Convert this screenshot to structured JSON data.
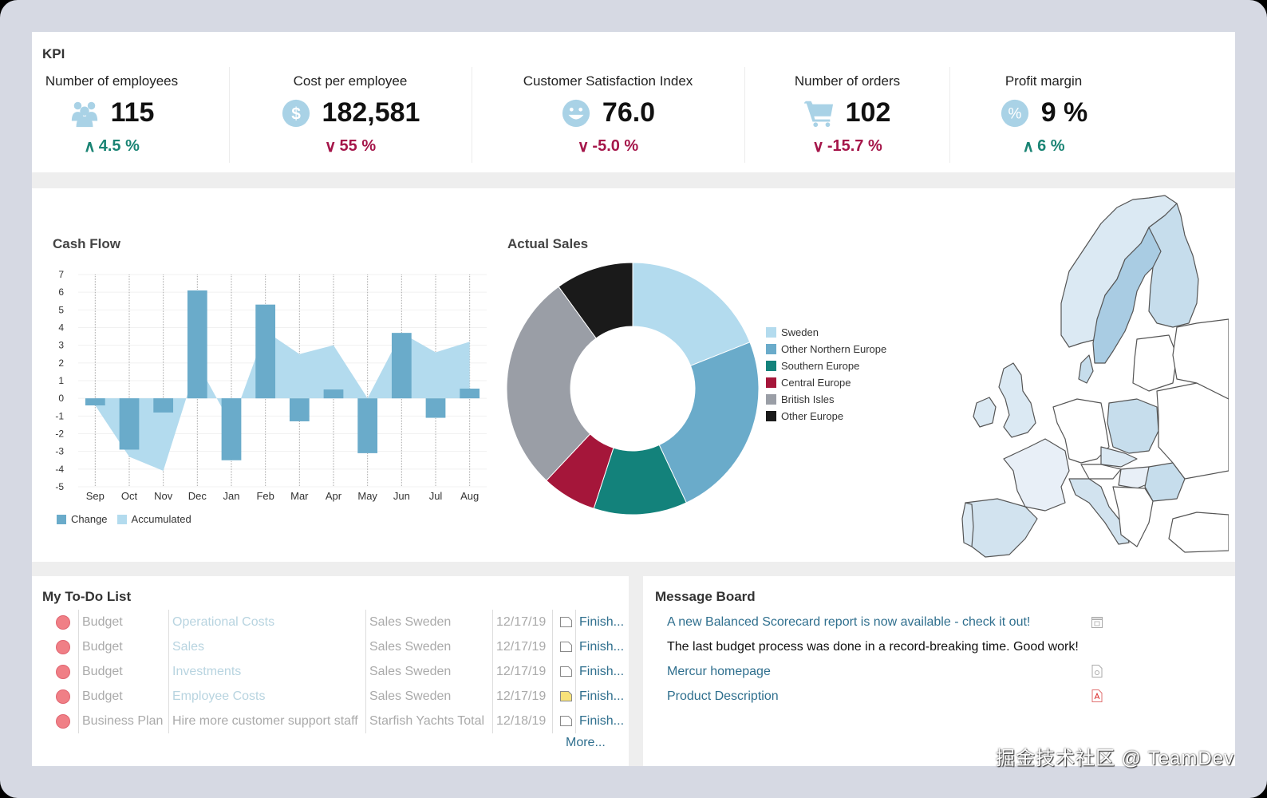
{
  "kpi": {
    "title": "KPI",
    "items": [
      {
        "label": "Number of employees",
        "value": "115",
        "delta": "4.5 %",
        "direction": "up",
        "icon": "people-icon"
      },
      {
        "label": "Cost per employee",
        "value": "182,581",
        "delta": "55 %",
        "direction": "down",
        "icon": "dollar-icon"
      },
      {
        "label": "Customer Satisfaction Index",
        "value": "76.0",
        "delta": "-5.0 %",
        "direction": "down",
        "icon": "smiley-icon"
      },
      {
        "label": "Number of orders",
        "value": "102",
        "delta": "-15.7 %",
        "direction": "down",
        "icon": "cart-icon"
      },
      {
        "label": "Profit margin",
        "value": "9 %",
        "delta": "6 %",
        "direction": "up",
        "icon": "percent-icon"
      }
    ]
  },
  "colors": {
    "up": "#1a8474",
    "down": "#a5164a",
    "icon": "#a9d2e6",
    "change": "#6aabca",
    "accumulated": "#b3dbee"
  },
  "chart_data": [
    {
      "type": "bar",
      "title": "Cash Flow",
      "categories": [
        "Sep",
        "Oct",
        "Nov",
        "Dec",
        "Jan",
        "Feb",
        "Mar",
        "Apr",
        "May",
        "Jun",
        "Jul",
        "Aug"
      ],
      "series": [
        {
          "name": "Change",
          "kind": "bar",
          "values": [
            -0.4,
            -2.9,
            -0.8,
            6.1,
            -3.5,
            5.3,
            -1.3,
            0.5,
            -3.1,
            3.7,
            -1.1,
            0.55
          ]
        },
        {
          "name": "Accumulated",
          "kind": "area",
          "values": [
            -0.4,
            -3.3,
            -4.1,
            2.0,
            -1.5,
            3.8,
            2.5,
            3.0,
            0.0,
            3.7,
            2.6,
            3.2
          ]
        }
      ],
      "ylim": [
        -5,
        7
      ],
      "yticks": [
        7,
        6,
        5,
        4,
        3,
        2,
        1,
        0,
        -1,
        -2,
        -3,
        -4,
        -5
      ],
      "xlabel": "",
      "ylabel": "",
      "grid": true,
      "legend": "bottom-left"
    },
    {
      "type": "pie",
      "title": "Actual Sales",
      "donut": true,
      "labels": [
        "Sweden",
        "Other Northern Europe",
        "Southern Europe",
        "Central Europe",
        "British Isles",
        "Other Europe"
      ],
      "values": [
        19,
        24,
        12,
        7,
        28,
        10
      ],
      "colors": [
        "#b3dbee",
        "#6aabca",
        "#13827b",
        "#a5163a",
        "#9a9ea6",
        "#1a1a1a"
      ],
      "legend": "right"
    }
  ],
  "map": {
    "title": "Europe sales map"
  },
  "todo": {
    "title": "My To-Do List",
    "rows": [
      {
        "type": "Budget",
        "item": "Operational Costs",
        "entity": "Sales Sweden",
        "date": "12/17/19",
        "note_highlight": false,
        "action": "Finish..."
      },
      {
        "type": "Budget",
        "item": "Sales",
        "entity": "Sales Sweden",
        "date": "12/17/19",
        "note_highlight": false,
        "action": "Finish..."
      },
      {
        "type": "Budget",
        "item": "Investments",
        "entity": "Sales Sweden",
        "date": "12/17/19",
        "note_highlight": false,
        "action": "Finish..."
      },
      {
        "type": "Budget",
        "item": "Employee Costs",
        "entity": "Sales Sweden",
        "date": "12/17/19",
        "note_highlight": true,
        "action": "Finish..."
      },
      {
        "type": "Business Plan",
        "item": "Hire more customer support staff",
        "entity": "Starfish Yachts Total",
        "date": "12/18/19",
        "note_highlight": false,
        "action": "Finish..."
      }
    ],
    "more": "More..."
  },
  "messages": {
    "title": "Message Board",
    "items": [
      {
        "text": "A new Balanced Scorecard report is now available - check it out!",
        "link": true,
        "icon": "report-icon"
      },
      {
        "text": "The last budget process was done in a record-breaking time. Good work!",
        "link": false,
        "icon": ""
      },
      {
        "text": "Mercur homepage",
        "link": true,
        "icon": "web-page-icon"
      },
      {
        "text": "Product Description",
        "link": true,
        "icon": "pdf-icon"
      }
    ]
  },
  "watermark": "掘金技术社区 @ TeamDev"
}
